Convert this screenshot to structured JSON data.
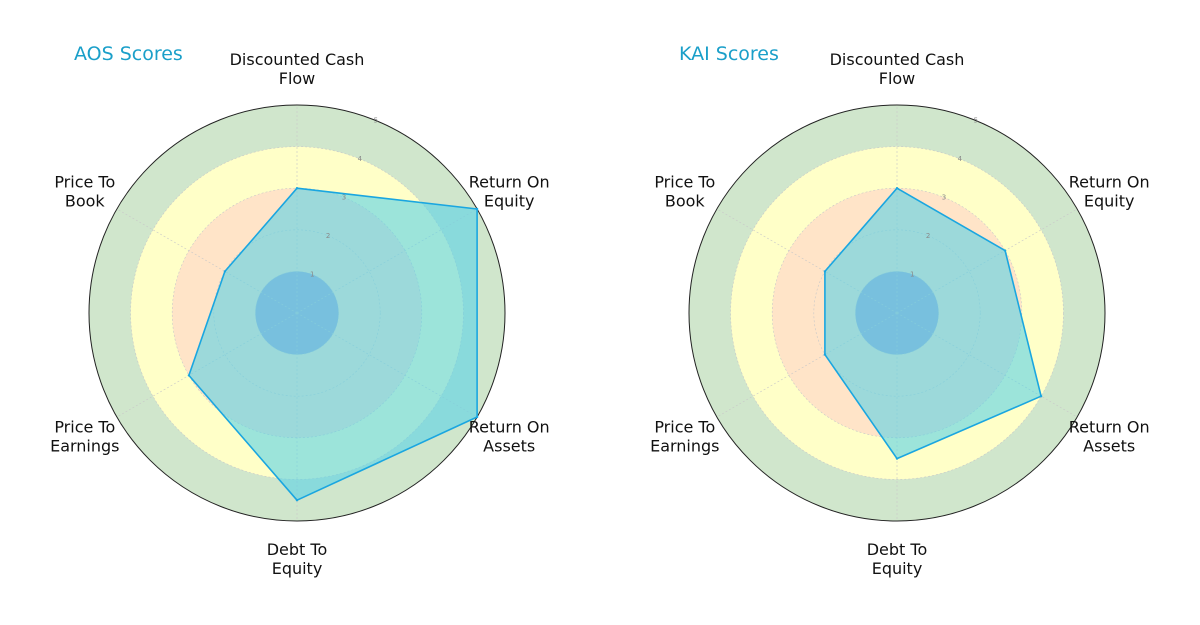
{
  "chart_data": [
    {
      "type": "radar",
      "title": "AOS Scores",
      "axes": [
        "Discounted Cash Flow",
        "Return On Equity",
        "Return On Assets",
        "Debt To Equity",
        "Price To Earnings",
        "Price To Book"
      ],
      "values": [
        3,
        5,
        5,
        4.5,
        3,
        2
      ],
      "rlim": [
        0,
        5
      ],
      "rticks": [
        "1",
        "2",
        "3",
        "4",
        "5"
      ],
      "bands": [
        {
          "from": 0,
          "to": 1,
          "color": "#a5a5d2"
        },
        {
          "from": 1,
          "to": 3,
          "color": "#ffe4c8"
        },
        {
          "from": 3,
          "to": 4,
          "color": "#ffffc8"
        },
        {
          "from": 4,
          "to": 5,
          "color": "#d0e6cc"
        }
      ],
      "fill_color": "#5ad2e6",
      "line_color": "#1aa6e0"
    },
    {
      "type": "radar",
      "title": "KAI Scores",
      "axes": [
        "Discounted Cash Flow",
        "Return On Equity",
        "Return On Assets",
        "Debt To Equity",
        "Price To Earnings",
        "Price To Book"
      ],
      "values": [
        3,
        3,
        4,
        3.5,
        2,
        2
      ],
      "rlim": [
        0,
        5
      ],
      "rticks": [
        "1",
        "2",
        "3",
        "4",
        "5"
      ],
      "bands": [
        {
          "from": 0,
          "to": 1,
          "color": "#a5a5d2"
        },
        {
          "from": 1,
          "to": 3,
          "color": "#ffe4c8"
        },
        {
          "from": 3,
          "to": 4,
          "color": "#ffffc8"
        },
        {
          "from": 4,
          "to": 5,
          "color": "#d0e6cc"
        }
      ],
      "fill_color": "#5ad2e6",
      "line_color": "#1aa6e0"
    }
  ],
  "axis_label_lines": [
    [
      "Discounted Cash",
      "Flow"
    ],
    [
      "Return On",
      "Equity"
    ],
    [
      "Return On",
      "Assets"
    ],
    [
      "Debt To",
      "Equity"
    ],
    [
      "Price To",
      "Earnings"
    ],
    [
      "Price To",
      "Book"
    ]
  ]
}
